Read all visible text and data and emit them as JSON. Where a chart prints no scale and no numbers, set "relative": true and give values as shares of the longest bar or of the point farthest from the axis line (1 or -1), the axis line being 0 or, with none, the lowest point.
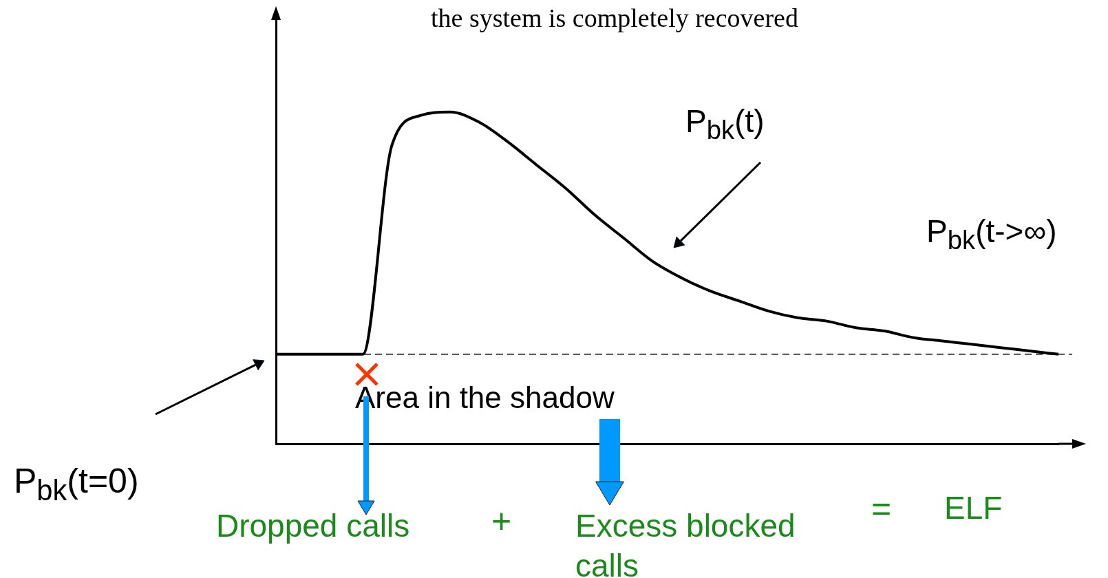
{
  "chart_data": {
    "type": "line",
    "relative": true,
    "title": "the system is completely recovered",
    "categories": [
      null,
      null,
      null,
      null,
      null,
      null,
      null,
      null,
      null,
      null,
      null,
      null,
      null,
      null,
      null,
      null,
      null,
      null,
      null,
      null,
      null,
      null,
      null,
      null,
      null,
      null,
      null,
      null
    ],
    "series": [
      {
        "name": null,
        "color": "#000000",
        "values": [
          0.27,
          0.27,
          0.27,
          0.27,
          0.9,
          0.99,
          1,
          0.97,
          0.91,
          0.84,
          0.77,
          0.69,
          0.62,
          0.55,
          0.5,
          0.46,
          0.43,
          0.4,
          0.38,
          0.37,
          0.35,
          0.34,
          0.32,
          0.31,
          0.3,
          0.29,
          0.28,
          0.27
        ]
      }
    ],
    "ref_lines": [
      {
        "axis": "y",
        "value": 0.27,
        "label": null,
        "color": "#000000",
        "line_style": "dashed"
      }
    ],
    "annotations": [
      "P$_{bk}$(t)",
      "P$_{bk}$(t->∞)",
      "P$_{bk}$(t=0)",
      "Area in the shadow",
      "Dropped calls",
      "+",
      "Excess blocked calls",
      "=",
      "ELF"
    ],
    "marker": "none",
    "line_style": "solid",
    "grid": false,
    "legend": false
  }
}
